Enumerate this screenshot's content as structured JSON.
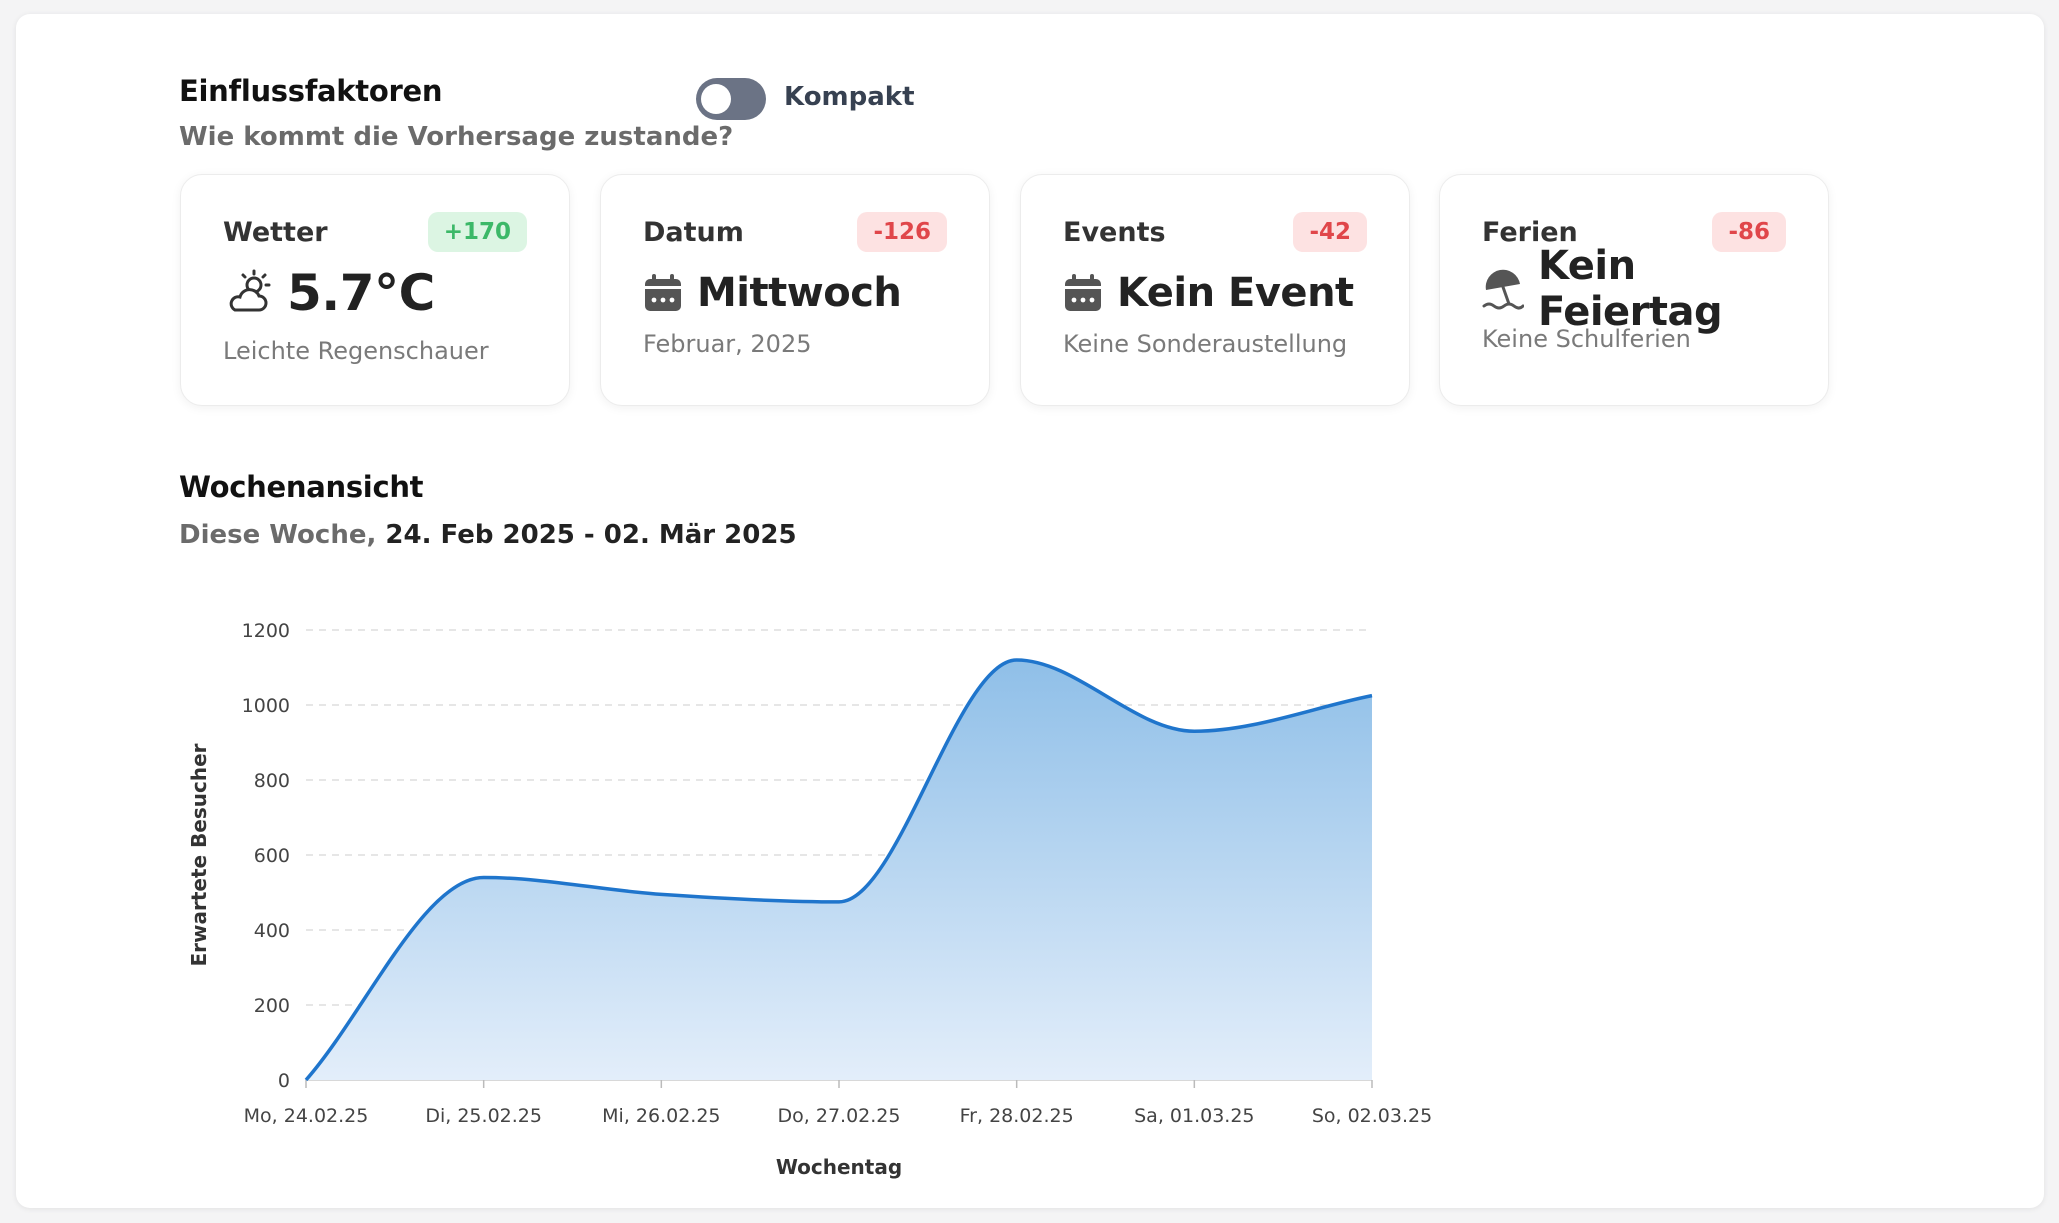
{
  "factors": {
    "title": "Einflussfaktoren",
    "subtitle": "Wie kommt die Vorhersage zustande?",
    "toggle_label": "Kompakt",
    "toggle_on": false,
    "cards": [
      {
        "title": "Wetter",
        "badge": "+170",
        "badge_type": "pos",
        "value": "5.7°C",
        "sub": "Leichte Regenschauer",
        "icon": "cloud-sun-icon"
      },
      {
        "title": "Datum",
        "badge": "-126",
        "badge_type": "neg",
        "value": "Mittwoch",
        "sub": "Februar, 2025",
        "icon": "calendar-icon"
      },
      {
        "title": "Events",
        "badge": "-42",
        "badge_type": "neg",
        "value": "Kein Event",
        "sub": "Keine Sonderaustellung",
        "icon": "calendar-icon"
      },
      {
        "title": "Ferien",
        "badge": "-86",
        "badge_type": "neg",
        "value": "Kein Feiertag",
        "sub": "Keine Schulferien",
        "icon": "beach-umbrella-icon"
      }
    ]
  },
  "week": {
    "title": "Wochenansicht",
    "subtitle_prefix": "Diese Woche,",
    "subtitle_range": "24. Feb 2025 - 02. Mär 2025"
  },
  "colors": {
    "line": "#1f75cc",
    "fill_top": "#8fbfe8",
    "fill_bottom": "#e3eefa",
    "badge_pos": "#3cb868",
    "badge_neg": "#e0464a"
  },
  "chart_data": {
    "type": "area",
    "x": [
      "Mo, 24.02.25",
      "Di, 25.02.25",
      "Mi, 26.02.25",
      "Do, 27.02.25",
      "Fr, 28.02.25",
      "Sa, 01.03.25",
      "So, 02.03.25"
    ],
    "series": [
      {
        "values": [
          0,
          540,
          495,
          475,
          1120,
          930,
          1025
        ]
      }
    ],
    "xlabel": "Wochentag",
    "ylabel": "Erwartete Besucher",
    "ylim": [
      0,
      1200
    ],
    "yticks": [
      0,
      200,
      400,
      600,
      800,
      1000,
      1200
    ],
    "grid": true,
    "smooth": true
  }
}
